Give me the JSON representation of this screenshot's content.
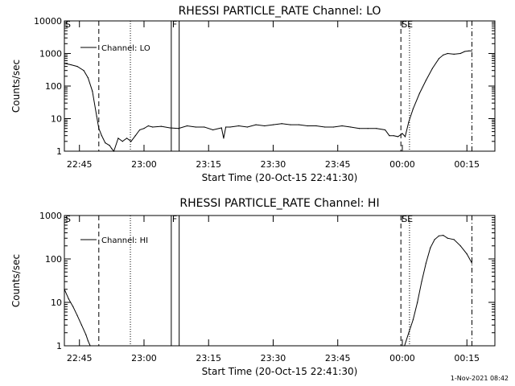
{
  "chart_data": [
    {
      "type": "line",
      "title": "RHESSI PARTICLE_RATE Channel: LO",
      "xlabel": "Start Time (20-Oct-15 22:41:30)",
      "ylabel": "Counts/sec",
      "y_scale": "log",
      "ylim": [
        1,
        10000
      ],
      "xlim": [
        "22:41:30",
        "00:21:30"
      ],
      "x_ticks": [
        "22:45",
        "23:00",
        "23:15",
        "23:30",
        "23:45",
        "00:00",
        "00:15"
      ],
      "y_ticks": [
        "1",
        "10",
        "100",
        "1000",
        "10000"
      ],
      "legend": {
        "label": "Channel: LO",
        "position": "top-left"
      },
      "event_markers": [
        {
          "label": "S",
          "time": "22:41:30",
          "style": "none"
        },
        {
          "time": "22:49:30",
          "style": "dashed"
        },
        {
          "time": "22:56:50",
          "style": "dotted"
        },
        {
          "label": "F",
          "time": "23:06:20",
          "style": "solid"
        },
        {
          "time": "23:08:10",
          "style": "solid"
        },
        {
          "label": "SE",
          "time": "23:59:40",
          "style": "dashed"
        },
        {
          "time": "00:01:40",
          "style": "dotted"
        },
        {
          "time": "00:16:10",
          "style": "dash-dot"
        }
      ],
      "series": [
        {
          "name": "Channel: LO",
          "x": [
            "22:41:30",
            "22:43:00",
            "22:44:30",
            "22:46:00",
            "22:47:00",
            "22:48:00",
            "22:49:00",
            "22:49:30",
            "22:50:10",
            "22:51:00",
            "22:52:00",
            "22:52:30",
            "22:53:00",
            "22:54:00",
            "22:55:00",
            "22:56:00",
            "22:57:00",
            "22:58:00",
            "22:59:00",
            "23:00:00",
            "23:01:00",
            "23:02:00",
            "23:04:00",
            "23:06:00",
            "23:08:00",
            "23:10:00",
            "23:12:00",
            "23:14:00",
            "23:16:00",
            "23:18:00",
            "23:18:30",
            "23:19:00",
            "23:20:00",
            "23:22:00",
            "23:24:00",
            "23:26:00",
            "23:28:00",
            "23:30:00",
            "23:32:00",
            "23:34:00",
            "23:36:00",
            "23:38:00",
            "23:40:00",
            "23:42:00",
            "23:44:00",
            "23:46:00",
            "23:48:00",
            "23:50:00",
            "23:52:00",
            "23:54:00",
            "23:56:00",
            "23:57:00",
            "23:58:00",
            "23:59:00",
            "00:00:00",
            "00:00:40",
            "00:01:30",
            "00:02:30",
            "00:04:00",
            "00:05:30",
            "00:07:00",
            "00:08:30",
            "00:09:30",
            "00:10:30",
            "00:12:00",
            "00:13:30",
            "00:14:30",
            "00:15:30",
            "00:16:10"
          ],
          "values": [
            500,
            450,
            400,
            300,
            180,
            70,
            12,
            5,
            3,
            1.8,
            1.5,
            1.2,
            0.8,
            2.5,
            2.0,
            2.5,
            2.0,
            3.0,
            4.5,
            5.0,
            6.0,
            5.5,
            5.8,
            5.2,
            5.0,
            6.0,
            5.5,
            5.5,
            4.5,
            5.2,
            2.5,
            5.5,
            5.5,
            6.0,
            5.5,
            6.5,
            6.0,
            6.5,
            7.0,
            6.5,
            6.5,
            6.0,
            6.0,
            5.5,
            5.5,
            6.0,
            5.5,
            5.0,
            5.0,
            5.0,
            4.5,
            3.0,
            3.0,
            2.8,
            3.5,
            2.8,
            8,
            20,
            60,
            150,
            350,
            700,
            900,
            1000,
            950,
            1000,
            1150,
            1200,
            1200
          ]
        }
      ]
    },
    {
      "type": "line",
      "title": "RHESSI PARTICLE_RATE Channel: HI",
      "xlabel": "Start Time (20-Oct-15 22:41:30)",
      "ylabel": "Counts/sec",
      "y_scale": "log",
      "ylim": [
        1,
        1000
      ],
      "xlim": [
        "22:41:30",
        "00:21:30"
      ],
      "x_ticks": [
        "22:45",
        "23:00",
        "23:15",
        "23:30",
        "23:45",
        "00:00",
        "00:15"
      ],
      "y_ticks": [
        "1",
        "10",
        "100",
        "1000"
      ],
      "legend": {
        "label": "Channel: HI",
        "position": "top-left"
      },
      "event_markers": [
        {
          "label": "S",
          "time": "22:41:30",
          "style": "none"
        },
        {
          "time": "22:49:30",
          "style": "dashed"
        },
        {
          "time": "22:56:50",
          "style": "dotted"
        },
        {
          "label": "F",
          "time": "23:06:20",
          "style": "solid"
        },
        {
          "time": "23:08:10",
          "style": "solid"
        },
        {
          "label": "SE",
          "time": "23:59:40",
          "style": "dashed"
        },
        {
          "time": "00:01:40",
          "style": "dotted"
        },
        {
          "time": "00:16:10",
          "style": "dash-dot"
        }
      ],
      "series": [
        {
          "name": "Channel: HI",
          "x": [
            "22:41:30",
            "22:42:30",
            "22:43:30",
            "22:44:30",
            "22:45:30",
            "22:46:30",
            "22:47:00",
            "22:47:30",
            "00:00:30",
            "00:01:30",
            "00:02:30",
            "00:03:30",
            "00:04:30",
            "00:05:30",
            "00:06:30",
            "00:07:30",
            "00:08:30",
            "00:09:30",
            "00:10:30",
            "00:12:00",
            "00:13:30",
            "00:15:00",
            "00:16:10"
          ],
          "values": [
            20,
            12,
            8,
            5,
            3,
            1.8,
            1.3,
            1.0,
            1.0,
            2,
            4,
            10,
            30,
            80,
            180,
            280,
            340,
            350,
            300,
            280,
            200,
            130,
            80
          ]
        }
      ]
    }
  ],
  "footer": {
    "timestamp": "1-Nov-2021 08:42"
  }
}
